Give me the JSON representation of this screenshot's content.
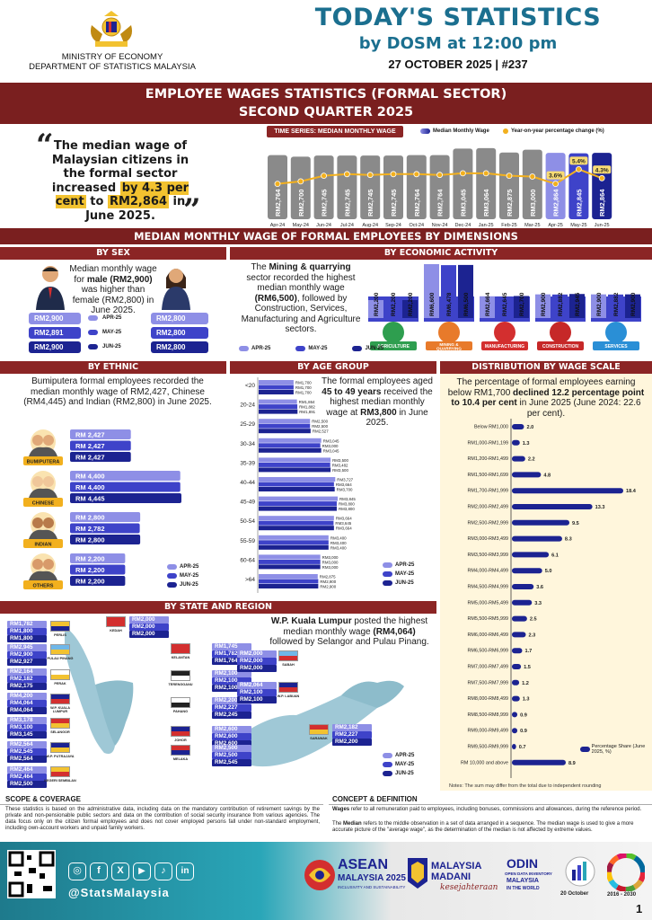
{
  "header": {
    "ministry": "MINISTRY OF ECONOMY",
    "department": "DEPARTMENT OF STATISTICS MALAYSIA",
    "title": "TODAY'S STATISTICS",
    "subtitle": "by DOSM at 12:00 pm",
    "date_issue": "27 OCTOBER 2025 |  #237"
  },
  "banner": {
    "line1": "EMPLOYEE WAGES STATISTICS (FORMAL SECTOR)",
    "line2": "SECOND QUARTER 2025"
  },
  "quote": {
    "a": "The median wage of Malaysian citizens in the formal sector increased ",
    "b": "by 4.3 per cent",
    "c": " to ",
    "d": "RM2,864",
    "e": " in June 2025."
  },
  "timeseries": {
    "label": "TIME SERIES: MEDIAN MONTHLY WAGE",
    "legend_bar": "Median Monthly Wage",
    "legend_line": "Year-on-year percentage change (%)"
  },
  "section2": "MEDIAN MONTHLY WAGE OF FORMAL EMPLOYEES BY DIMENSIONS",
  "sex": {
    "head": "BY SEX",
    "text_a": "Median monthly wage for ",
    "text_b": "male (RM2,900)",
    "text_c": " was higher than female (RM2,800) in June 2025.",
    "male": [
      "RM2,900",
      "RM2,891",
      "RM2,900"
    ],
    "female": [
      "RM2,800",
      "RM2,800",
      "RM2,800"
    ],
    "periods": [
      "APR-25",
      "MAY-25",
      "JUN-25"
    ]
  },
  "econ": {
    "head": "BY ECONOMIC ACTIVITY",
    "text_a": "The ",
    "text_b": "Mining & quarrying",
    "text_c": " sector recorded the highest median monthly wage ",
    "text_d": "(RM6,500)",
    "text_e": ", followed by Construction, Services, Manufacturing and Agriculture sectors.",
    "legend": [
      "APR-25",
      "MAY-25",
      "JUN-25"
    ]
  },
  "ethnic": {
    "head": "BY ETHNIC",
    "text": "Bumiputera formal employees recorded the median monthly wage of RM2,427, Chinese (RM4,445) and Indian (RM2,800) in June 2025.",
    "legend": [
      "APR-25",
      "MAY-25",
      "JUN-25"
    ]
  },
  "age": {
    "head": "BY AGE GROUP",
    "text_a": "The formal employees aged ",
    "text_b": "45 to 49 years",
    "text_c": " received the highest median monthly wage at ",
    "text_d": "RM3,800",
    "text_e": " in June 2025.",
    "legend": [
      "APR-25",
      "MAY-25",
      "JUN-25"
    ]
  },
  "dist": {
    "head": "DISTRIBUTION BY WAGE SCALE",
    "text_a": "The percentage of formal employees earning below RM1,700 ",
    "text_b": "declined 12.2 percentage point to 10.4 per cent",
    "text_c": " in June 2025 (June 2024: 22.6 per cent).",
    "legend": "Percentage Share (June 2025, %)",
    "note": "Notes: The sum may differ from the total due to independent rounding"
  },
  "state": {
    "head": "BY STATE AND REGION",
    "text_a": "W.P. Kuala Lumpur",
    "text_b": " posted the highest median monthly wage ",
    "text_c": "(RM4,064)",
    "text_d": " followed by Selangor and Pulau Pinang.",
    "legend": [
      "APR-25",
      "MAY-25",
      "JUN-25"
    ]
  },
  "scope": {
    "head": "SCOPE & COVERAGE",
    "text": "These statistics is based on the administrative data, including data on the mandatory contribution of retirement savings by the private and non-pensionable public sectors and data on the contribution of social security insurance from various agencies. The data focus only on the citizen formal employees and does not cover employed persons fall under non-standard employment, including own-account workers and unpaid family workers."
  },
  "concept": {
    "head": "CONCEPT & DEFINITION",
    "w1": "Wages",
    "w2": " refer to all remuneration paid to employees, including bonuses, commissions and allowances, during the reference period.",
    "m1": "The ",
    "m2": "Median",
    "m3": " refers to the middle observation in a set of data arranged in a sequence. The median wage is used to give a more accurate picture of the \"average wage\", as the determination of the median is not affected by extreme values."
  },
  "footer": {
    "handle": "@StatsMalaysia",
    "asean": "ASEAN",
    "asean2": "MALAYSIA 2025",
    "asean3": "INCLUSIVITY AND SUSTAINABILITY",
    "madani": "MALAYSIA",
    "madani2": "MADANI",
    "madani3": "kesejahteraan",
    "odin1": "ODIN",
    "odin2": "OPEN DATA INVENTORY",
    "odin3": "MALAYSIA",
    "odin4": "IN THE WORLD",
    "wsd": "20 October",
    "sdg": "2016 - 2030",
    "page": "1"
  },
  "chart_data": [
    {
      "type": "bar",
      "title": "TIME SERIES: MEDIAN MONTHLY WAGE",
      "categories": [
        "Apr-24",
        "May-24",
        "Jun-24",
        "Jul-24",
        "Aug-24",
        "Sep-24",
        "Oct-24",
        "Nov-24",
        "Dec-24",
        "Jan-25",
        "Feb-25",
        "Mar-25",
        "Apr-25",
        "May-25",
        "Jun-25"
      ],
      "series": [
        {
          "name": "Median Monthly Wage",
          "values": [
            2764,
            2700,
            2745,
            2745,
            2745,
            2745,
            2764,
            2764,
            3045,
            3064,
            2875,
            3000,
            2864,
            2845,
            2864
          ],
          "labels": [
            "RM2,764",
            "RM2,700",
            "RM2,745",
            "RM2,745",
            "RM2,745",
            "RM2,745",
            "RM2,764",
            "RM2,764",
            "RM3,045",
            "RM3,064",
            "RM2,875",
            "RM3,000",
            "RM2,864",
            "RM2,845",
            "RM2,864"
          ]
        },
        {
          "name": "Year-on-year percentage change (%)",
          "type": "line",
          "values": [
            3.6,
            3.9,
            4.6,
            4.8,
            4.7,
            4.8,
            4.8,
            4.7,
            4.9,
            4.9,
            4.6,
            4.5,
            3.6,
            5.4,
            4.3
          ],
          "printed": {
            "12": "3.6%",
            "13": "5.4%",
            "14": "4.3%"
          }
        }
      ]
    },
    {
      "type": "bar",
      "title": "BY ECONOMIC ACTIVITY",
      "categories": [
        "AGRICULTURE",
        "MINING & QUARRYING",
        "MANUFACTURING",
        "CONSTRUCTION",
        "SERVICES"
      ],
      "series": [
        {
          "name": "APR-25",
          "values": [
            2200,
            6600,
            2664,
            2900,
            2900
          ],
          "labels": [
            "RM2,200",
            "RM6,600",
            "RM2,664",
            "RM2,900",
            "RM2,900"
          ]
        },
        {
          "name": "MAY-25",
          "values": [
            2200,
            6478,
            2645,
            2882,
            2882
          ],
          "labels": [
            "RM2,200",
            "RM6,478",
            "RM2,645",
            "RM2,882",
            "RM2,882"
          ]
        },
        {
          "name": "JUN-25",
          "values": [
            2200,
            6500,
            2700,
            2945,
            2900
          ],
          "labels": [
            "RM2,200",
            "RM6,500",
            "RM2,700",
            "RM2,945",
            "RM2,900"
          ]
        }
      ]
    },
    {
      "type": "bar",
      "title": "BY ETHNIC",
      "categories": [
        "BUMIPUTERA",
        "CHINESE",
        "INDIAN",
        "OTHERS"
      ],
      "series": [
        {
          "name": "APR-25",
          "values": [
            2427,
            4400,
            2800,
            2200
          ],
          "labels": [
            "RM 2,427",
            "RM 4,400",
            "RM 2,800",
            "RM 2,200"
          ]
        },
        {
          "name": "MAY-25",
          "values": [
            2427,
            4400,
            2782,
            2200
          ],
          "labels": [
            "RM 2,427",
            "RM 4,400",
            "RM 2,782",
            "RM 2,200"
          ]
        },
        {
          "name": "JUN-25",
          "values": [
            2427,
            4445,
            2800,
            2200
          ],
          "labels": [
            "RM 2,427",
            "RM 4,445",
            "RM 2,800",
            "RM 2,200"
          ]
        }
      ]
    },
    {
      "type": "bar",
      "title": "BY AGE GROUP",
      "categories": [
        "<20",
        "20-24",
        "25-29",
        "30-34",
        "35-39",
        "40-44",
        "45-49",
        "50-54",
        "55-59",
        "60-64",
        ">64"
      ],
      "series": [
        {
          "name": "APR-25",
          "values": [
            1700,
            1864,
            2500,
            3045,
            3500,
            3727,
            3845,
            3664,
            3400,
            3000,
            2875
          ]
        },
        {
          "name": "MAY-25",
          "values": [
            1700,
            1882,
            2500,
            3000,
            3482,
            3664,
            3800,
            3645,
            3400,
            3000,
            2900
          ]
        },
        {
          "name": "JUN-25",
          "values": [
            1700,
            1891,
            2527,
            3045,
            3500,
            3700,
            3800,
            3664,
            3400,
            3000,
            2900
          ]
        }
      ]
    },
    {
      "type": "bar",
      "title": "DISTRIBUTION BY WAGE SCALE",
      "categories": [
        "Below RM1,000",
        "RM1,000-RM1,199",
        "RM1,200-RM1,499",
        "RM1,500-RM1,699",
        "RM1,700-RM1,999",
        "RM2,000-RM2,499",
        "RM2,500-RM2,999",
        "RM3,000-RM3,499",
        "RM3,500-RM3,999",
        "RM4,000-RM4,499",
        "RM4,500-RM4,999",
        "RM5,000-RM5,499",
        "RM5,500-RM5,999",
        "RM6,000-RM6,499",
        "RM6,500-RM6,999",
        "RM7,000-RM7,499",
        "RM7,500-RM7,999",
        "RM8,000-RM8,499",
        "RM8,500-RM8,999",
        "RM9,000-RM9,499",
        "RM9,500-RM9,999",
        "RM 10,000 and above"
      ],
      "series": [
        {
          "name": "Percentage Share (June 2025, %)",
          "values": [
            2.0,
            1.3,
            2.2,
            4.8,
            18.4,
            13.3,
            9.5,
            8.3,
            6.1,
            5.0,
            3.6,
            3.3,
            2.5,
            2.3,
            1.7,
            1.5,
            1.2,
            1.3,
            0.9,
            0.9,
            0.7,
            8.9
          ]
        }
      ]
    }
  ],
  "age_labels": [
    [
      "RM1,700",
      "RM1,700",
      "RM1,700"
    ],
    [
      "RM1,864",
      "RM1,882",
      "RM1,891"
    ],
    [
      "RM2,500",
      "RM2,500",
      "RM2,527"
    ],
    [
      "RM3,045",
      "RM3,000",
      "RM3,045"
    ],
    [
      "RM3,500",
      "RM3,482",
      "RM3,500"
    ],
    [
      "RM3,727",
      "RM3,664",
      "RM3,700"
    ],
    [
      "RM3,845",
      "RM3,800",
      "RM3,800"
    ],
    [
      "RM3,664",
      "RM3,645",
      "RM3,664"
    ],
    [
      "RM3,400",
      "RM3,400",
      "RM3,400"
    ],
    [
      "RM3,000",
      "RM3,000",
      "RM3,000"
    ],
    [
      "RM2,875",
      "RM2,900",
      "RM2,900"
    ]
  ],
  "states": [
    {
      "name": "PERLIS",
      "v": [
        "RM1,782",
        "RM1,800",
        "RM1,800"
      ],
      "flag": [
        "#f2c230",
        "#1c2391"
      ]
    },
    {
      "name": "PULAU PINANG",
      "v": [
        "RM2,945",
        "RM2,900",
        "RM2,927"
      ],
      "flag": [
        "#6fb7e8",
        "#f2c230"
      ]
    },
    {
      "name": "PERAK",
      "v": [
        "RM2,164",
        "RM2,182",
        "RM2,175"
      ],
      "flag": [
        "#ffffff",
        "#f2c230"
      ]
    },
    {
      "name": "W.P. KUALA LUMPUR",
      "v": [
        "RM4,200",
        "RM4,064",
        "RM4,064"
      ],
      "flag": [
        "#1c2391",
        "#d32f2f"
      ]
    },
    {
      "name": "SELANGOR",
      "v": [
        "RM3,178",
        "RM3,100",
        "RM3,145"
      ],
      "flag": [
        "#d32f2f",
        "#f2c230"
      ]
    },
    {
      "name": "W.P. PUTRAJAYA",
      "v": [
        "RM2,564",
        "RM2,545",
        "RM2,564"
      ],
      "flag": [
        "#1c2391",
        "#f2c230"
      ]
    },
    {
      "name": "NEGERI SEMBILAN",
      "v": [
        "RM2,464",
        "RM2,464",
        "RM2,500"
      ],
      "flag": [
        "#f2c230",
        "#d32f2f"
      ]
    },
    {
      "name": "KEDAH",
      "v": [
        "RM2,000",
        "RM2,000",
        "RM2,000"
      ],
      "flag": [
        "#d32f2f",
        "#d32f2f"
      ]
    },
    {
      "name": "KELANTAN",
      "v": [
        "RM1,745",
        "RM1,782",
        "RM1,764"
      ],
      "flag": [
        "#d32f2f",
        "#d32f2f"
      ]
    },
    {
      "name": "TERENGGANU",
      "v": [
        "RM2,100",
        "RM2,100",
        "RM2,100"
      ],
      "flag": [
        "#222222",
        "#ffffff"
      ]
    },
    {
      "name": "PAHANG",
      "v": [
        "RM2,200",
        "RM2,227",
        "RM2,245"
      ],
      "flag": [
        "#ffffff",
        "#222222"
      ]
    },
    {
      "name": "JOHOR",
      "v": [
        "RM2,600",
        "RM2,600",
        "RM2,600"
      ],
      "flag": [
        "#1c2391",
        "#d32f2f"
      ]
    },
    {
      "name": "MELAKA",
      "v": [
        "RM2,500",
        "RM2,500",
        "RM2,545"
      ],
      "flag": [
        "#d32f2f",
        "#1c2391"
      ]
    },
    {
      "name": "SABAH",
      "v": [
        "RM2,000",
        "RM2,000",
        "RM2,000"
      ],
      "flag": [
        "#6fb7e8",
        "#d32f2f"
      ]
    },
    {
      "name": "W.P. LABUAN",
      "v": [
        "RM2,064",
        "RM2,100",
        "RM2,100"
      ],
      "flag": [
        "#1c2391",
        "#d32f2f"
      ]
    },
    {
      "name": "SARAWAK",
      "v": [
        "RM2,182",
        "RM2,227",
        "RM2,200"
      ],
      "flag": [
        "#d32f2f",
        "#f2c230"
      ]
    }
  ],
  "colors": {
    "apr": "#8e8fe6",
    "may": "#3e43c9",
    "jun": "#1c2391",
    "maroon": "#7a1f1f",
    "title": "#1b6f8f",
    "gold": "#f2b01e",
    "grey": "#8a8a8a"
  }
}
